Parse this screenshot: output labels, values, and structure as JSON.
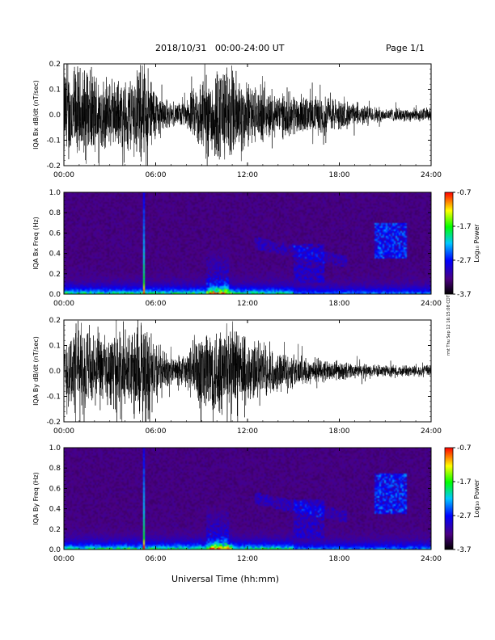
{
  "header": {
    "title": "2018/10/31   00:00-24:00 UT",
    "page": "Page 1/1"
  },
  "xaxis_title": "Universal Time (hh:mm)",
  "stamp": "rmt Thu Sep 12 16:15:08 CDT 2019",
  "chart_data": [
    {
      "type": "line",
      "ylabel": "IQA Bx dB/dt (nT/sec)",
      "x_ticks": [
        "00:00",
        "06:00",
        "12:00",
        "18:00",
        "24:00"
      ],
      "y_ticks": [
        "0.2",
        "0.1",
        "0.0",
        "-0.1",
        "-0.2"
      ],
      "ylim": [
        -0.2,
        0.2
      ],
      "xlim_hours": [
        0,
        24
      ],
      "envelope": {
        "hours": [
          0,
          1,
          2,
          3,
          4,
          5,
          5.5,
          6,
          7,
          8,
          9,
          10,
          11,
          12,
          13,
          14,
          15,
          16,
          17,
          18,
          19,
          20,
          21,
          22,
          23,
          24
        ],
        "amplitude": [
          0.22,
          0.22,
          0.2,
          0.15,
          0.16,
          0.22,
          0.22,
          0.12,
          0.05,
          0.06,
          0.18,
          0.22,
          0.22,
          0.15,
          0.12,
          0.1,
          0.1,
          0.08,
          0.09,
          0.07,
          0.05,
          0.04,
          0.03,
          0.03,
          0.03,
          0.03
        ]
      }
    },
    {
      "type": "heatmap",
      "ylabel": "IQA Bx Freq (Hz)",
      "x_ticks": [
        "00:00",
        "06:00",
        "12:00",
        "18:00",
        "24:00"
      ],
      "y_ticks": [
        "1.0",
        "0.8",
        "0.6",
        "0.4",
        "0.2",
        "0.0"
      ],
      "ylim": [
        0,
        1.0
      ],
      "colorbar": {
        "label": "Log₁₀ Power",
        "ticks": [
          "-0.7",
          "-1.7",
          "-2.7",
          "-3.7"
        ],
        "range": [
          -3.7,
          -0.7
        ]
      }
    },
    {
      "type": "line",
      "ylabel": "IQA By dB/dt (nT/sec)",
      "x_ticks": [
        "00:00",
        "06:00",
        "12:00",
        "18:00",
        "24:00"
      ],
      "y_ticks": [
        "0.2",
        "0.1",
        "0.0",
        "-0.1",
        "-0.2"
      ],
      "ylim": [
        -0.2,
        0.2
      ],
      "xlim_hours": [
        0,
        24
      ],
      "envelope": {
        "hours": [
          0,
          1,
          2,
          3,
          4,
          5,
          5.5,
          6,
          7,
          8,
          9,
          10,
          11,
          12,
          13,
          14,
          15,
          16,
          17,
          18,
          19,
          20,
          21,
          22,
          23,
          24
        ],
        "amplitude": [
          0.18,
          0.22,
          0.18,
          0.16,
          0.18,
          0.22,
          0.22,
          0.14,
          0.06,
          0.08,
          0.2,
          0.22,
          0.22,
          0.16,
          0.12,
          0.09,
          0.08,
          0.06,
          0.05,
          0.04,
          0.035,
          0.03,
          0.025,
          0.025,
          0.025,
          0.025
        ]
      }
    },
    {
      "type": "heatmap",
      "ylabel": "IQA By Freq (Hz)",
      "x_ticks": [
        "00:00",
        "06:00",
        "12:00",
        "18:00",
        "24:00"
      ],
      "y_ticks": [
        "1.0",
        "0.8",
        "0.6",
        "0.4",
        "0.2",
        "0.0"
      ],
      "ylim": [
        0,
        1.0
      ],
      "colorbar": {
        "label": "Log₁₀ Power",
        "ticks": [
          "-0.7",
          "-1.7",
          "-2.7",
          "-3.7"
        ],
        "range": [
          -3.7,
          -0.7
        ]
      }
    }
  ]
}
